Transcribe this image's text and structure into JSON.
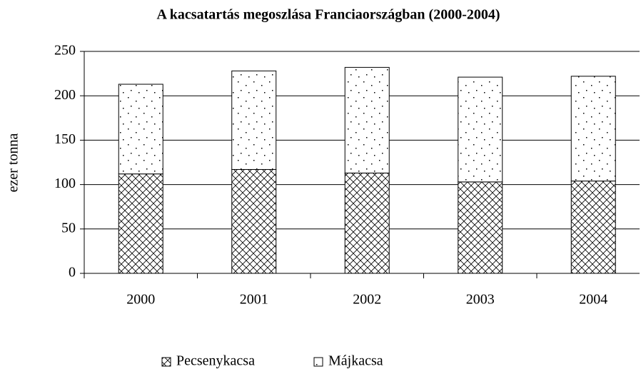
{
  "chart_data": {
    "type": "stacked_bar",
    "title": "A kacsatartás megoszlása Franciaországban (2000-2004)",
    "y_label": "ezer tonna",
    "categories": [
      "2000",
      "2001",
      "2002",
      "2003",
      "2004"
    ],
    "series": [
      {
        "name": "Pecsenykacsa",
        "pattern": "crosshatch",
        "color": "#000000",
        "values": [
          112,
          117,
          113,
          103,
          104
        ]
      },
      {
        "name": "Májkacsa",
        "pattern": "dots",
        "color": "#000000",
        "values": [
          101,
          111,
          119,
          118,
          118
        ]
      }
    ],
    "ylim": [
      0,
      250
    ],
    "yticks": [
      0,
      50,
      100,
      150,
      200,
      250
    ],
    "grid": true
  }
}
